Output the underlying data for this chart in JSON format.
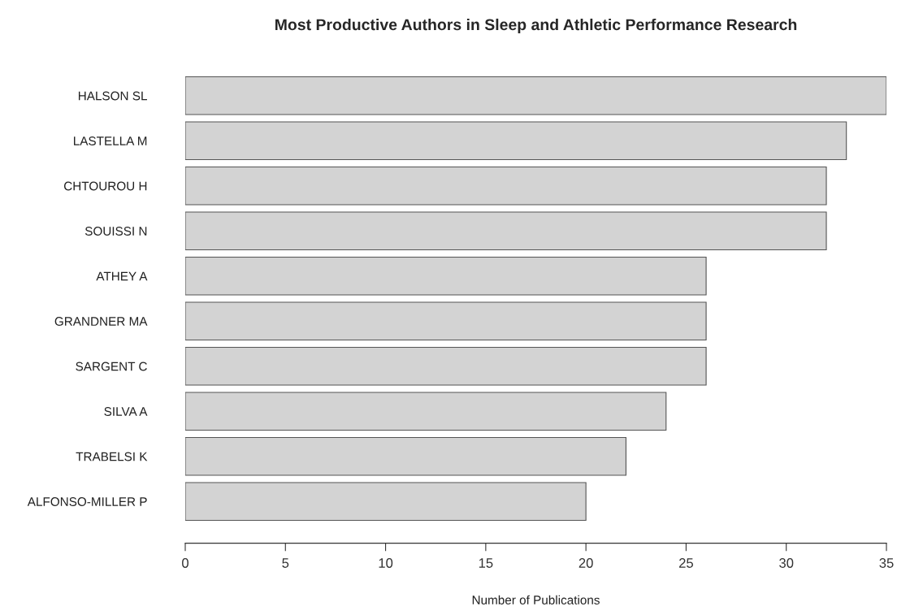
{
  "chart_data": {
    "type": "bar",
    "orientation": "horizontal",
    "title": "Most Productive Authors in Sleep and Athletic Performance Research",
    "xlabel": "Number of Publications",
    "categories": [
      "HALSON SL",
      "LASTELLA M",
      "CHTOUROU H",
      "SOUISSI N",
      "ATHEY A",
      "GRANDNER MA",
      "SARGENT C",
      "SILVA A",
      "TRABELSI K",
      "ALFONSO-MILLER P"
    ],
    "values": [
      35,
      33,
      32,
      32,
      26,
      26,
      26,
      24,
      22,
      20
    ],
    "color": "#d3d3d3",
    "xlim": [
      0,
      35
    ],
    "xticks": [
      0,
      5,
      10,
      15,
      20,
      25,
      30,
      35
    ],
    "grid": false,
    "legend": false
  }
}
